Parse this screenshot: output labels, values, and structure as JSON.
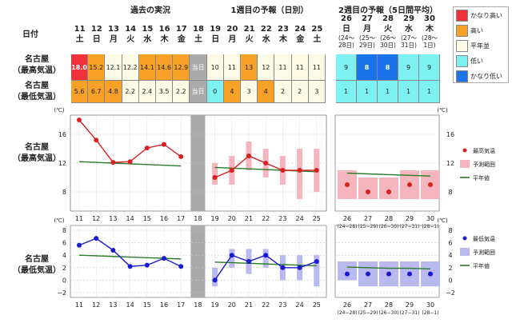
{
  "header": {
    "section_past": "過去の実況",
    "section_week1": "1週目の予報（日別）",
    "section_week2": "2週目の予報（5日間平均）",
    "date_label": "日付",
    "days": [
      {
        "d": "11",
        "w": "土"
      },
      {
        "d": "12",
        "w": "日"
      },
      {
        "d": "13",
        "w": "月"
      },
      {
        "d": "14",
        "w": "火"
      },
      {
        "d": "15",
        "w": "水"
      },
      {
        "d": "16",
        "w": "木"
      },
      {
        "d": "17",
        "w": "金"
      },
      {
        "d": "18",
        "w": "土"
      },
      {
        "d": "19",
        "w": "日"
      },
      {
        "d": "20",
        "w": "月"
      },
      {
        "d": "21",
        "w": "火"
      },
      {
        "d": "22",
        "w": "水"
      },
      {
        "d": "23",
        "w": "木"
      },
      {
        "d": "24",
        "w": "金"
      },
      {
        "d": "25",
        "w": "土"
      }
    ],
    "week2": [
      {
        "d": "26",
        "w": "日",
        "r1": "(24〜",
        "r2": "28日)"
      },
      {
        "d": "27",
        "w": "月",
        "r1": "(25〜",
        "r2": "29日)"
      },
      {
        "d": "28",
        "w": "火",
        "r1": "(26〜",
        "r2": "30日)"
      },
      {
        "d": "29",
        "w": "水",
        "r1": "(27〜",
        "r2": "31日)"
      },
      {
        "d": "30",
        "w": "木",
        "r1": "(28〜",
        "r2": "1日)"
      }
    ]
  },
  "rows": {
    "max_label_1": "名古屋",
    "max_label_2": "（最高気温）",
    "min_label_1": "名古屋",
    "min_label_2": "（最低気温）",
    "today_label": "当日",
    "max_values": [
      "18.0",
      "15.2",
      "12.1",
      "12.2",
      "14.1",
      "14.6",
      "12.9",
      "当日",
      "10",
      "11",
      "13",
      "12",
      "11",
      "11",
      "11"
    ],
    "min_values": [
      "5.6",
      "6.7",
      "4.8",
      "2.2",
      "2.4",
      "3.5",
      "2.2",
      "当日",
      "0",
      "4",
      "3",
      "4",
      "2",
      "2",
      "3"
    ],
    "max_week2": [
      "9",
      "8",
      "8",
      "9",
      "9"
    ],
    "min_week2": [
      "1",
      "1",
      "1",
      "1",
      "1"
    ]
  },
  "colors": {
    "much_high": "#f0333a",
    "high": "#f7a128",
    "normal": "#fdfbe5",
    "low": "#7ef2f2",
    "much_low": "#1a73e8",
    "gray": "#aaaaaa",
    "max_line": "#d92020",
    "min_line": "#1a1ad0",
    "normal_line": "#2a7a2a",
    "max_range": "#f5b5bc",
    "min_range": "#b9b9f0"
  },
  "legend_top": {
    "much_high": "かなり高い",
    "high": "高い",
    "normal": "平年並",
    "low": "低い",
    "much_low": "かなり低い"
  },
  "cell_colors": {
    "max": [
      "much_high",
      "high",
      "normal",
      "normal",
      "high",
      "high",
      "high",
      "today",
      "normal",
      "normal",
      "high",
      "normal",
      "normal",
      "normal",
      "normal"
    ],
    "max_week2": [
      "low",
      "much_low",
      "much_low",
      "low",
      "low"
    ],
    "min": [
      "high",
      "high",
      "high",
      "normal",
      "normal",
      "normal",
      "normal",
      "today",
      "low",
      "high",
      "normal",
      "high",
      "normal",
      "normal",
      "normal"
    ],
    "min_week2": [
      "low",
      "low",
      "low",
      "low",
      "low"
    ]
  },
  "chart_data": [
    {
      "type": "line",
      "title": "名古屋（最高気温）",
      "unit": "(℃)",
      "x": [
        "11",
        "12",
        "13",
        "14",
        "15",
        "16",
        "17",
        "18",
        "19",
        "20",
        "21",
        "22",
        "23",
        "24",
        "25"
      ],
      "week2_x": [
        "26",
        "27",
        "28",
        "29",
        "30"
      ],
      "week2_x_sub": [
        "(24−28)",
        "(25−29)",
        "(26−30)",
        "(27−31)",
        "(28−1)"
      ],
      "ylim": [
        6,
        18
      ],
      "yticks": [
        8,
        12,
        16
      ],
      "series": [
        {
          "name": "最高気温",
          "past": [
            18.0,
            15.2,
            12.1,
            12.2,
            14.1,
            14.6,
            12.9
          ],
          "forecast": [
            10,
            11,
            13,
            12,
            11,
            11,
            11
          ],
          "week2": [
            9,
            8,
            8,
            9,
            9
          ]
        },
        {
          "name": "予測範囲",
          "forecast_range": [
            [
              9,
              12
            ],
            [
              9,
              13
            ],
            [
              11,
              15
            ],
            [
              10,
              14
            ],
            [
              9,
              13
            ],
            [
              7,
              14
            ],
            [
              8,
              14
            ]
          ],
          "week2_range": [
            [
              7,
              11
            ],
            [
              7,
              10
            ],
            [
              7,
              10
            ],
            [
              7,
              11
            ],
            [
              7,
              11
            ]
          ]
        },
        {
          "name": "平年値",
          "past": [
            12.2,
            12.1,
            12.0,
            11.9,
            11.8,
            11.7,
            11.6
          ],
          "forecast": [
            11.4,
            11.3,
            11.2,
            11.1,
            11.0,
            10.9,
            10.8
          ],
          "week2": [
            10.6,
            10.5,
            10.4,
            10.3,
            10.2
          ]
        }
      ]
    },
    {
      "type": "line",
      "title": "名古屋（最低気温）",
      "unit": "(℃)",
      "x": [
        "11",
        "12",
        "13",
        "14",
        "15",
        "16",
        "17",
        "18",
        "19",
        "20",
        "21",
        "22",
        "23",
        "24",
        "25"
      ],
      "week2_x": [
        "26",
        "27",
        "28",
        "29",
        "30"
      ],
      "week2_x_sub": [
        "(24−28)",
        "(25−29)",
        "(26−30)",
        "(27−31)",
        "(28−1)"
      ],
      "ylim": [
        -2,
        8
      ],
      "yticks": [
        -2,
        0,
        2,
        4,
        6,
        8
      ],
      "series": [
        {
          "name": "最低気温",
          "past": [
            5.6,
            6.7,
            4.8,
            2.2,
            2.4,
            3.5,
            2.2
          ],
          "forecast": [
            0,
            4,
            3,
            4,
            2,
            2,
            3
          ],
          "week2": [
            1,
            1,
            1,
            1,
            1
          ]
        },
        {
          "name": "予測範囲",
          "forecast_range": [
            [
              -1,
              2
            ],
            [
              2,
              5
            ],
            [
              1,
              5
            ],
            [
              2,
              5
            ],
            [
              0,
              4
            ],
            [
              0,
              4
            ],
            [
              -1,
              4
            ]
          ],
          "week2_range": [
            [
              0,
              3
            ],
            [
              -1,
              3
            ],
            [
              -1,
              3
            ],
            [
              -1,
              3
            ],
            [
              -1,
              3
            ]
          ]
        },
        {
          "name": "平年値",
          "past": [
            4.0,
            3.9,
            3.8,
            3.7,
            3.6,
            3.5,
            3.4
          ],
          "forecast": [
            2.9,
            2.8,
            2.7,
            2.6,
            2.5,
            2.4,
            2.3
          ],
          "week2": [
            2.1,
            2.0,
            1.9,
            1.9,
            1.8
          ]
        }
      ]
    }
  ]
}
